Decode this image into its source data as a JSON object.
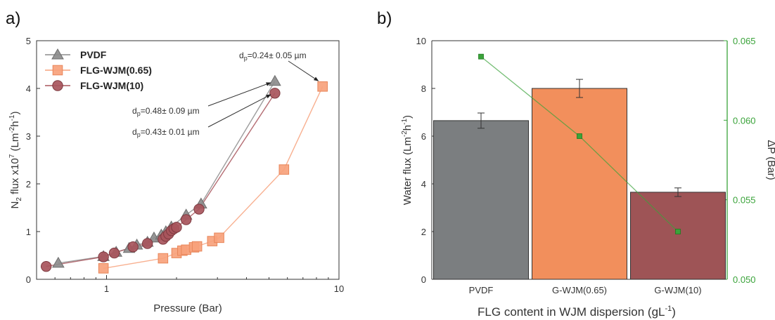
{
  "panels": [
    {
      "panel_label": "a)",
      "chart_data": {
        "type": "scatter",
        "x_scale": "log",
        "xlabel": "Pressure (Bar)",
        "ylabel_parts": {
          "base": "N",
          "sub": "2",
          "mid": " flux x10",
          "sup": "7",
          "unit": " (Lm",
          "unit_sup": "-2",
          "unit_mid": "h",
          "unit_sup2": "-1",
          "close": ")"
        },
        "xlim": [
          0.5,
          10
        ],
        "ylim": [
          0,
          5
        ],
        "x_ticks": [
          1,
          10
        ],
        "y_ticks": [
          0,
          1,
          2,
          3,
          4,
          5
        ],
        "legend_position": "top-left",
        "series": [
          {
            "name": "PVDF",
            "marker": "triangle",
            "color": "#8c8c8c",
            "edge": "#6e6e6e",
            "points": [
              [
                0.62,
                0.34
              ],
              [
                0.97,
                0.48
              ],
              [
                1.1,
                0.57
              ],
              [
                1.25,
                0.65
              ],
              [
                1.35,
                0.72
              ],
              [
                1.5,
                0.78
              ],
              [
                1.6,
                0.87
              ],
              [
                1.72,
                0.93
              ],
              [
                1.8,
                1.0
              ],
              [
                1.9,
                1.1
              ],
              [
                2.2,
                1.35
              ],
              [
                2.55,
                1.58
              ],
              [
                5.3,
                4.15
              ]
            ]
          },
          {
            "name": "FLG-WJM(0.65)",
            "marker": "square",
            "color": "#f7a27c",
            "edge": "#e8865a",
            "points": [
              [
                0.97,
                0.23
              ],
              [
                1.75,
                0.44
              ],
              [
                2.0,
                0.55
              ],
              [
                2.12,
                0.6
              ],
              [
                2.2,
                0.62
              ],
              [
                2.38,
                0.67
              ],
              [
                2.45,
                0.69
              ],
              [
                2.85,
                0.8
              ],
              [
                3.05,
                0.87
              ],
              [
                5.8,
                2.3
              ],
              [
                8.5,
                4.04
              ]
            ]
          },
          {
            "name": "FLG-WJM(10)",
            "marker": "circle",
            "color": "#a8555c",
            "edge": "#7e3a40",
            "points": [
              [
                0.55,
                0.27
              ],
              [
                0.97,
                0.47
              ],
              [
                1.08,
                0.55
              ],
              [
                1.3,
                0.68
              ],
              [
                1.5,
                0.75
              ],
              [
                1.75,
                0.84
              ],
              [
                1.8,
                0.9
              ],
              [
                1.85,
                0.95
              ],
              [
                1.9,
                1.02
              ],
              [
                1.95,
                1.06
              ],
              [
                2.0,
                1.09
              ],
              [
                2.2,
                1.25
              ],
              [
                2.5,
                1.47
              ],
              [
                5.3,
                3.9
              ]
            ]
          }
        ],
        "annotations": [
          {
            "label": "d",
            "sub": "p",
            "value": "=0.24± 0.05 µm",
            "target": [
              8.5,
              4.04
            ]
          },
          {
            "label": "d",
            "sub": "p",
            "value": "=0.48± 0.09 µm",
            "target": [
              5.3,
              4.15
            ]
          },
          {
            "label": "d",
            "sub": "p",
            "value": "=0.43± 0.01 µm",
            "target": [
              5.3,
              3.9
            ]
          }
        ]
      }
    },
    {
      "panel_label": "b)",
      "chart_data": {
        "type": "bar",
        "categories": [
          "PVDF",
          "G-WJM(0.65)",
          "G-WJM(10)"
        ],
        "bar_colors": [
          "#7b7e80",
          "#f28f5c",
          "#9e5456"
        ],
        "series": [
          {
            "axis": "left",
            "values": [
              6.65,
              8.0,
              3.65
            ],
            "errors": [
              0.32,
              0.38,
              0.18
            ]
          },
          {
            "axis": "right",
            "type": "line",
            "color": "#3aa33a",
            "values": [
              0.064,
              0.059,
              0.053
            ]
          }
        ],
        "xlabel_parts": {
          "base": "FLG content in WJM dispersion (gL",
          "sup": "-1",
          "close": ")"
        },
        "ylabel_parts": {
          "base": "Water flux (Lm",
          "sup": "-2",
          "mid": "h",
          "sup2": "-1",
          "close": ")"
        },
        "y2label": "ΔP (Bar)",
        "ylim": [
          0,
          10
        ],
        "y2lim": [
          0.05,
          0.065
        ],
        "y_ticks": [
          0,
          2,
          4,
          6,
          8,
          10
        ],
        "y2_ticks": [
          "0.050",
          "0.055",
          "0.060",
          "0.065"
        ]
      }
    }
  ]
}
